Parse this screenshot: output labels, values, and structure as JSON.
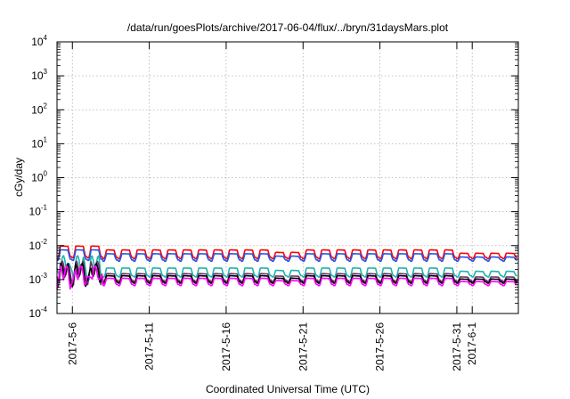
{
  "chart_data": {
    "type": "line",
    "title": "/data/run/goesPlots/archive/2017-06-04/flux/../bryn/31daysMars.plot",
    "xlabel": "Coordinated Universal Time (UTC)",
    "ylabel": "cGy/day",
    "y_scale": "log",
    "ylim": [
      0.0001,
      10000
    ],
    "y_ticks": [
      {
        "base": "10",
        "exp": "-4",
        "value": 0.0001
      },
      {
        "base": "10",
        "exp": "-3",
        "value": 0.001
      },
      {
        "base": "10",
        "exp": "-2",
        "value": 0.01
      },
      {
        "base": "10",
        "exp": "-1",
        "value": 0.1
      },
      {
        "base": "10",
        "exp": "0",
        "value": 1
      },
      {
        "base": "10",
        "exp": "1",
        "value": 10
      },
      {
        "base": "10",
        "exp": "2",
        "value": 100
      },
      {
        "base": "10",
        "exp": "3",
        "value": 1000
      },
      {
        "base": "10",
        "exp": "4",
        "value": 10000
      }
    ],
    "xlim": [
      "2017-05-05",
      "2017-06-04"
    ],
    "x_ticks": [
      "2017-5-6",
      "2017-5-11",
      "2017-5-16",
      "2017-5-21",
      "2017-5-26",
      "2017-5-31",
      "2017-6-1"
    ],
    "x_tick_days": [
      1,
      6,
      11,
      16,
      21,
      26,
      27
    ],
    "grid": true,
    "series": [
      {
        "color": "#ff0000",
        "baseline": 0.0045,
        "peak": 0.0075,
        "pattern": "daily-sawtooth"
      },
      {
        "color": "#2255ee",
        "baseline": 0.0038,
        "peak": 0.0058,
        "pattern": "daily-sawtooth"
      },
      {
        "color": "#20b2aa",
        "baseline": 0.0013,
        "peak": 0.0022,
        "pattern": "daily-sawtooth"
      },
      {
        "color": "#663366",
        "baseline": 0.00095,
        "peak": 0.0015,
        "pattern": "daily-sawtooth"
      },
      {
        "color": "#000000",
        "baseline": 0.00085,
        "peak": 0.0013,
        "pattern": "daily-sawtooth"
      },
      {
        "color": "#ff00ff",
        "baseline": 0.00072,
        "peak": 0.0011,
        "pattern": "daily-sawtooth"
      }
    ]
  }
}
